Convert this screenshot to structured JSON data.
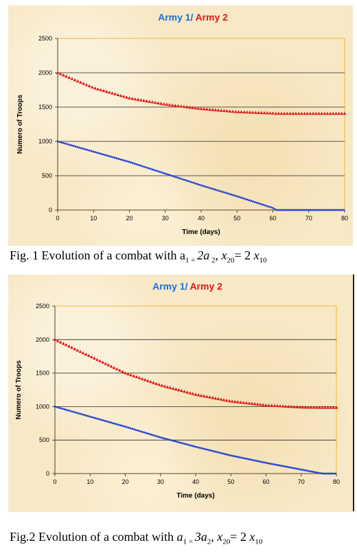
{
  "figures": [
    {
      "title_part1": "Army 1/",
      "title_part2": "Army 2",
      "ylabel": "Numero of Troops",
      "xlabel": "Time (days)",
      "caption": {
        "prefix": "Fig. 1 Evolution of a combat with a",
        "rest": [
          {
            "t": "1",
            "k": "sub"
          },
          {
            "t": " = ",
            "k": "sub"
          },
          {
            "t": "2",
            "k": "i"
          },
          {
            "t": "a",
            "k": "i"
          },
          {
            "t": " 2",
            "k": "sub"
          },
          {
            "t": ", ",
            "k": "plain"
          },
          {
            "t": "x",
            "k": "i"
          },
          {
            "t": "20",
            "k": "sub"
          },
          {
            "t": "= 2 ",
            "k": "plain"
          },
          {
            "t": "x",
            "k": "i"
          },
          {
            "t": "10",
            "k": "sub"
          }
        ]
      }
    },
    {
      "title_part1": "Army 1/",
      "title_part2": "Army 2",
      "ylabel": "Numero of Troops",
      "xlabel": "Time (days)",
      "caption": {
        "prefix": "Fig.2 Evolution of a combat with ",
        "rest": [
          {
            "t": "a",
            "k": "i"
          },
          {
            "t": "1",
            "k": "sub"
          },
          {
            "t": " = ",
            "k": "sub"
          },
          {
            "t": "3",
            "k": "i"
          },
          {
            "t": "a",
            "k": "i"
          },
          {
            "t": "2",
            "k": "sub"
          },
          {
            "t": ", ",
            "k": "plain"
          },
          {
            "t": "x",
            "k": "i"
          },
          {
            "t": "20",
            "k": "sub"
          },
          {
            "t": "= 2 ",
            "k": "plain"
          },
          {
            "t": "x",
            "k": "i"
          },
          {
            "t": "10",
            "k": "sub"
          }
        ]
      }
    }
  ],
  "colors": {
    "army1": "#1f3fd6",
    "army2": "#e01919",
    "title_blue": "#1f6fd1",
    "frame": "#f2b82d"
  },
  "chart_data": [
    {
      "type": "scatter",
      "title": "Army 1/ Army 2",
      "xlabel": "Time (days)",
      "ylabel": "Numero of Troops",
      "xlim": [
        0,
        80
      ],
      "ylim": [
        0,
        2500
      ],
      "xticks": [
        0,
        10,
        20,
        30,
        40,
        50,
        60,
        70,
        80
      ],
      "yticks": [
        0,
        500,
        1000,
        1500,
        2000,
        2500
      ],
      "grid": "horizontal",
      "series": [
        {
          "name": "Army 1",
          "marker": "square",
          "x": [
            0,
            10,
            20,
            30,
            40,
            50,
            60,
            61,
            70,
            80
          ],
          "y": [
            1000,
            850,
            700,
            530,
            360,
            200,
            30,
            0,
            0,
            0
          ]
        },
        {
          "name": "Army 2",
          "marker": "triangle",
          "x": [
            0,
            10,
            20,
            30,
            40,
            50,
            60,
            61,
            70,
            80
          ],
          "y": [
            2000,
            1780,
            1630,
            1540,
            1475,
            1430,
            1410,
            1405,
            1405,
            1405
          ]
        }
      ]
    },
    {
      "type": "scatter",
      "title": "Army 1/ Army 2",
      "xlabel": "Time (days)",
      "ylabel": "Numero of Troops",
      "xlim": [
        0,
        80
      ],
      "ylim": [
        0,
        2500
      ],
      "xticks": [
        0,
        10,
        20,
        30,
        40,
        50,
        60,
        70,
        80
      ],
      "yticks": [
        0,
        500,
        1000,
        1500,
        2000,
        2500
      ],
      "grid": "horizontal",
      "series": [
        {
          "name": "Army 1",
          "marker": "square",
          "x": [
            0,
            10,
            20,
            30,
            40,
            50,
            60,
            70,
            76,
            80
          ],
          "y": [
            1000,
            850,
            700,
            540,
            400,
            270,
            160,
            60,
            0,
            0
          ]
        },
        {
          "name": "Army 2",
          "marker": "triangle",
          "x": [
            0,
            10,
            20,
            30,
            40,
            50,
            60,
            70,
            76,
            80
          ],
          "y": [
            2000,
            1750,
            1500,
            1320,
            1180,
            1080,
            1020,
            990,
            985,
            985
          ]
        }
      ]
    }
  ]
}
